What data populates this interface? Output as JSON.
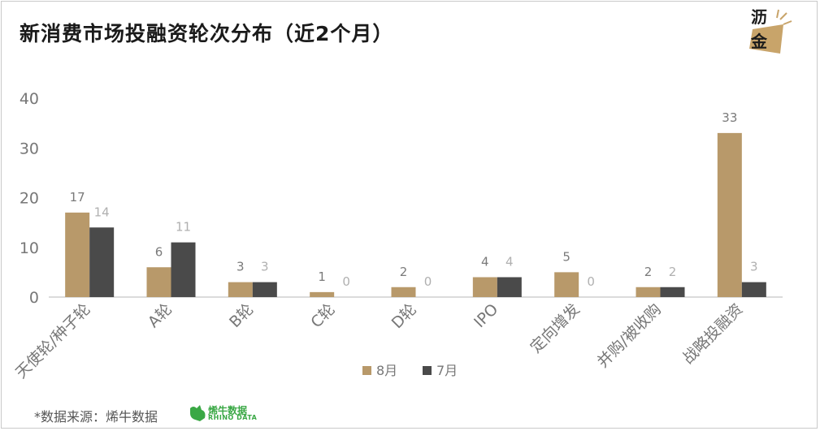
{
  "title": "新消费市场投融资轮次分布（近2个月）",
  "logo": {
    "line1": "沥",
    "line2": "金"
  },
  "source": "*数据来源：烯牛数据",
  "brand": {
    "name": "烯牛数据",
    "sub": "RHINO DATA"
  },
  "colors": {
    "series1": "#b8996a",
    "series2": "#4a4a4a",
    "label1": "#7a7a7a",
    "label2": "#b0b0b0",
    "axis": "#cfcfcf",
    "tick": "#777777"
  },
  "chart_data": {
    "type": "bar",
    "title": "新消费市场投融资轮次分布（近2个月）",
    "categories": [
      "天使轮/种子轮",
      "A轮",
      "B轮",
      "C轮",
      "D轮",
      "IPO",
      "定向增发",
      "并购/被收购",
      "战略投融资"
    ],
    "series": [
      {
        "name": "8月",
        "values": [
          17,
          6,
          3,
          1,
          2,
          4,
          5,
          2,
          33
        ]
      },
      {
        "name": "7月",
        "values": [
          14,
          11,
          3,
          0,
          0,
          4,
          0,
          2,
          3
        ]
      }
    ],
    "ylim": [
      0,
      40
    ],
    "yticks": [
      0,
      10,
      20,
      30,
      40
    ],
    "grid": false,
    "legend": "bottom-center",
    "xlabel": "",
    "ylabel": ""
  }
}
